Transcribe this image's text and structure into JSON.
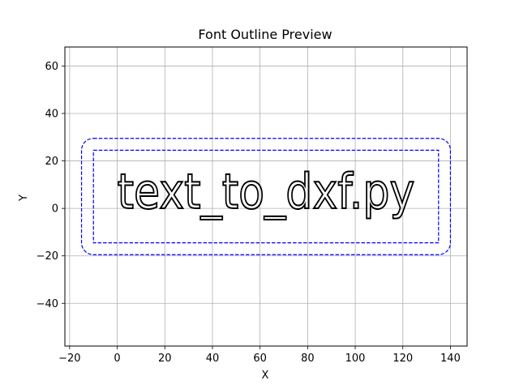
{
  "chart_data": {
    "type": "line",
    "title": "Font Outline Preview",
    "xlabel": "X",
    "ylabel": "Y",
    "xlim": [
      -22,
      147
    ],
    "ylim": [
      -58,
      68
    ],
    "xticks": [
      -20,
      0,
      20,
      40,
      60,
      80,
      100,
      120,
      140
    ],
    "yticks": [
      -40,
      -20,
      0,
      20,
      40,
      60
    ],
    "xtick_labels": [
      "−20",
      "0",
      "20",
      "40",
      "60",
      "80",
      "100",
      "120",
      "140"
    ],
    "ytick_labels": [
      "−40",
      "−20",
      "0",
      "20",
      "40",
      "60"
    ],
    "grid": true,
    "outline_text": {
      "text": "text_to_dxf.py",
      "color": "#000000",
      "x": [
        0,
        125
      ],
      "y": [
        -3,
        15
      ]
    },
    "series": [
      {
        "style": "dashed",
        "color": "#0000ff",
        "x": [
          -10,
          135,
          135,
          -10,
          -10
        ],
        "y": [
          24.5,
          24.5,
          -14.5,
          -14.5,
          24.5
        ]
      },
      {
        "style": "dashed-rounded",
        "color": "#0000ff",
        "x": [
          -15,
          140,
          140,
          -15,
          -15
        ],
        "y": [
          29.5,
          29.5,
          -19.5,
          -19.5,
          29.5
        ],
        "corner_radius": 5
      }
    ]
  }
}
